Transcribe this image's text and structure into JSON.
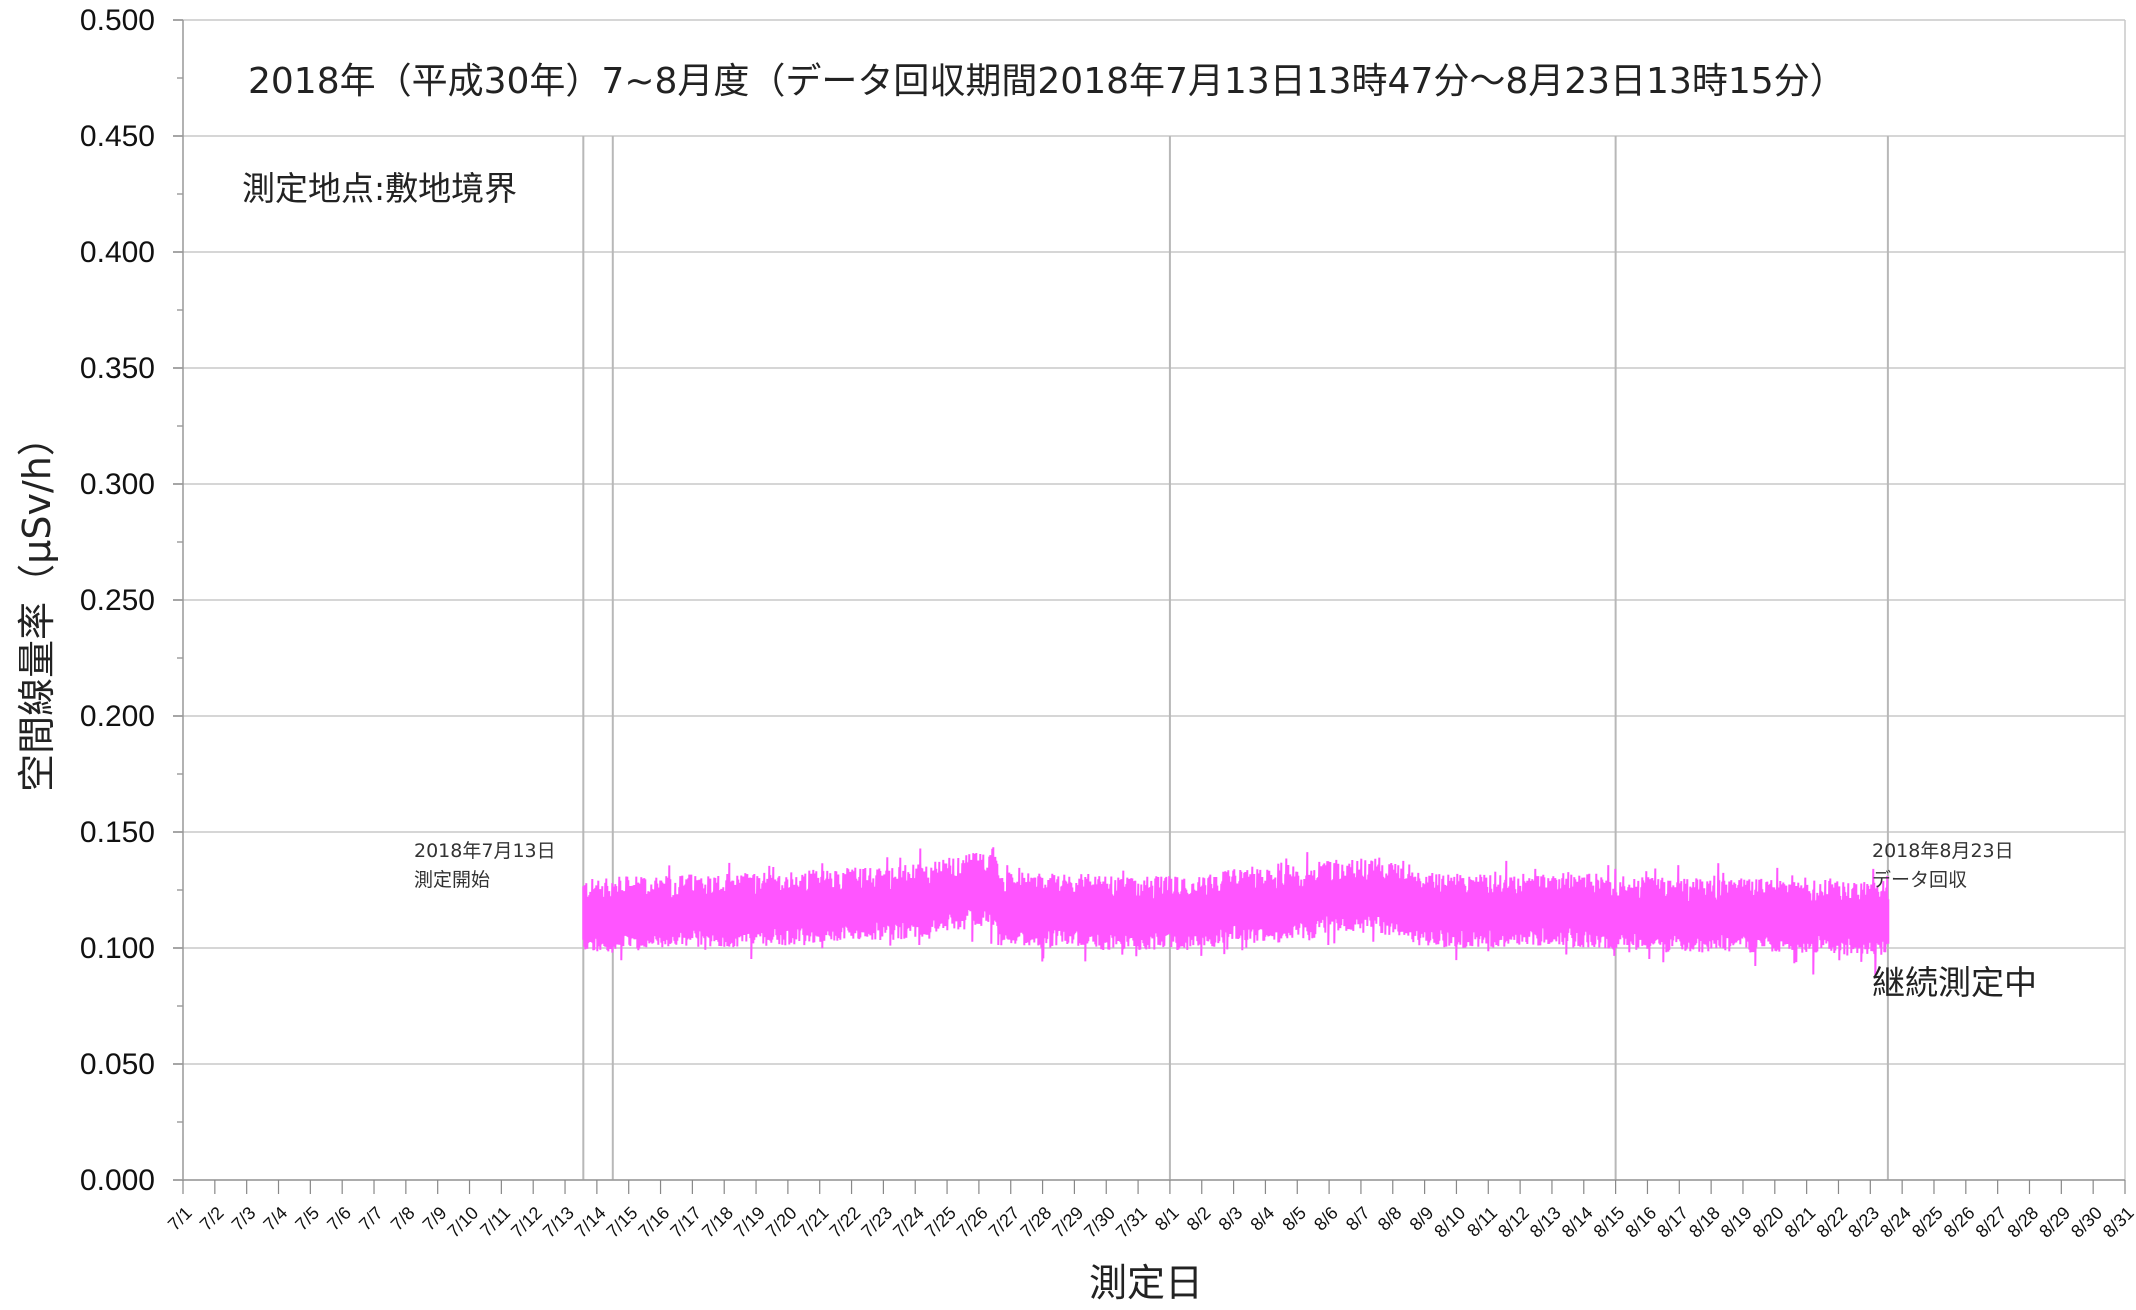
{
  "chart_data": {
    "type": "line",
    "title": "2018年（平成30年）7~8月度（データ回収期間2018年7月13日13時47分～8月23日13時15分）",
    "subtitle": "測定地点:敷地境界",
    "xlabel": "測定日",
    "ylabel": "空間線量率（μSv/h）",
    "ylim": [
      0,
      0.5
    ],
    "yticks": [
      "0.000",
      "0.050",
      "0.100",
      "0.150",
      "0.200",
      "0.250",
      "0.300",
      "0.350",
      "0.400",
      "0.450",
      "0.500"
    ],
    "categories": [
      "7/1",
      "7/2",
      "7/3",
      "7/4",
      "7/5",
      "7/6",
      "7/7",
      "7/8",
      "7/9",
      "7/10",
      "7/11",
      "7/12",
      "7/13",
      "7/14",
      "7/15",
      "7/16",
      "7/17",
      "7/18",
      "7/19",
      "7/20",
      "7/21",
      "7/22",
      "7/23",
      "7/24",
      "7/25",
      "7/26",
      "7/27",
      "7/28",
      "7/29",
      "7/30",
      "7/31",
      "8/1",
      "8/2",
      "8/3",
      "8/4",
      "8/5",
      "8/6",
      "8/7",
      "8/8",
      "8/9",
      "8/10",
      "8/11",
      "8/12",
      "8/13",
      "8/14",
      "8/15",
      "8/16",
      "8/17",
      "8/18",
      "8/19",
      "8/20",
      "8/21",
      "8/22",
      "8/23",
      "8/24",
      "8/25",
      "8/26",
      "8/27",
      "8/28",
      "8/29",
      "8/30",
      "8/31"
    ],
    "series": [
      {
        "color": "#ff55ff",
        "daily_mean": [
          0.114,
          0.115,
          0.115,
          0.116,
          0.116,
          0.117,
          0.117,
          0.118,
          0.119,
          0.119,
          0.12,
          0.123,
          0.125,
          0.117,
          0.116,
          0.116,
          0.115,
          0.115,
          0.115,
          0.116,
          0.118,
          0.118,
          0.12,
          0.122,
          0.123,
          0.121,
          0.117,
          0.116,
          0.116,
          0.117,
          0.117,
          0.116,
          0.115,
          0.115,
          0.114,
          0.114,
          0.114,
          0.114,
          0.114,
          0.113,
          0.113,
          0.112
        ],
        "daily_max": [
          0.135,
          0.133,
          0.137,
          0.136,
          0.137,
          0.139,
          0.137,
          0.14,
          0.138,
          0.141,
          0.146,
          0.143,
          0.148,
          0.138,
          0.136,
          0.137,
          0.135,
          0.135,
          0.143,
          0.139,
          0.14,
          0.14,
          0.143,
          0.146,
          0.143,
          0.139,
          0.136,
          0.135,
          0.138,
          0.135,
          0.134,
          0.136,
          0.139,
          0.138,
          0.137,
          0.138,
          0.136,
          0.137,
          0.134,
          0.134,
          0.143,
          0.137
        ],
        "daily_min": [
          0.092,
          0.091,
          0.095,
          0.096,
          0.096,
          0.095,
          0.097,
          0.096,
          0.098,
          0.098,
          0.099,
          0.1,
          0.101,
          0.096,
          0.093,
          0.094,
          0.095,
          0.094,
          0.091,
          0.095,
          0.097,
          0.098,
          0.099,
          0.1,
          0.099,
          0.097,
          0.095,
          0.094,
          0.095,
          0.095,
          0.094,
          0.093,
          0.094,
          0.093,
          0.094,
          0.095,
          0.092,
          0.095,
          0.085,
          0.093,
          0.084,
          0.094
        ]
      }
    ],
    "data_range": [
      "7/13 13:47",
      "8/23 13:15"
    ],
    "vertical_lines": [
      "7/13",
      "7/14",
      "7/31",
      "8/14",
      "8/23"
    ],
    "annotations": {
      "start_date": "2018年7月13日",
      "start_label": "測定開始",
      "end_date": "2018年8月23日",
      "end_label": "データ回収",
      "status": "継続測定中"
    },
    "grid": "horizontal"
  }
}
